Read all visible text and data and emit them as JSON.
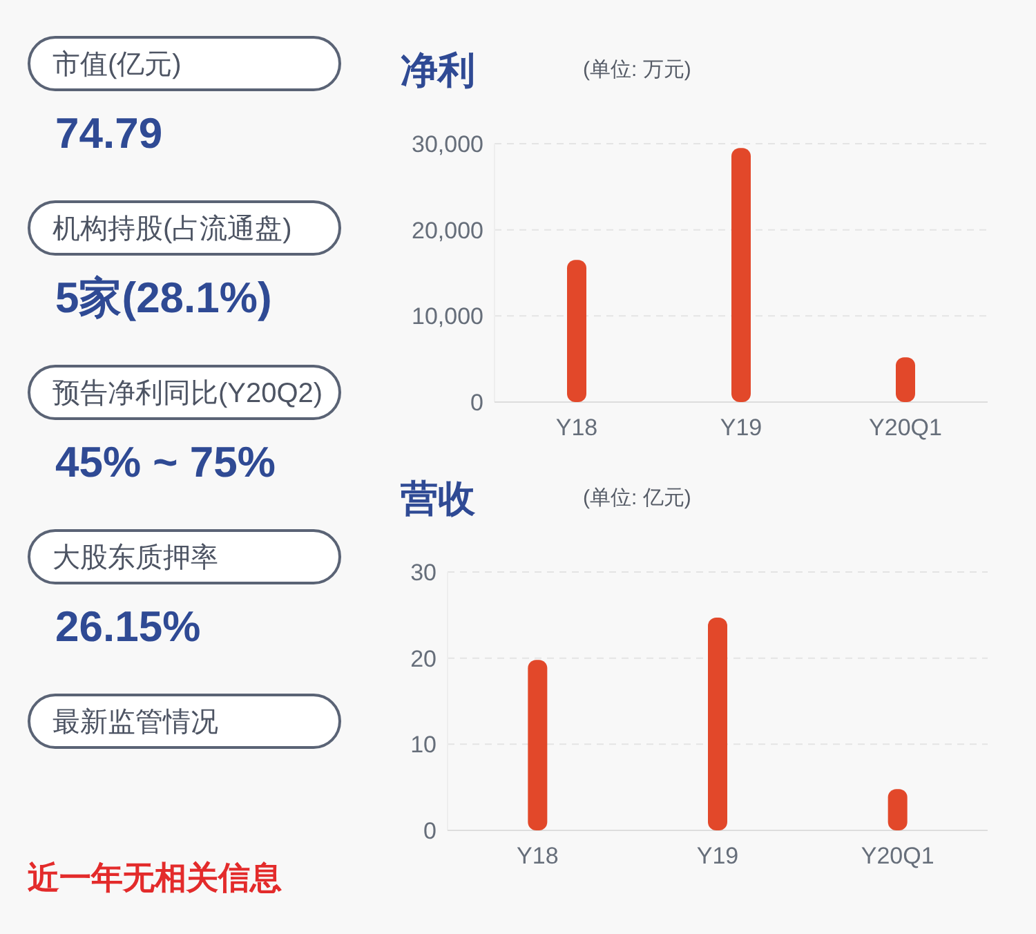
{
  "chart_data": [
    {
      "type": "other",
      "annotations": [
        "市值(亿元)",
        "74.79",
        "机构持股(占流通盘)",
        "5家(28.1%)",
        "预告净利同比(Y20Q2)",
        "45% ~ 75%",
        "大股东质押率",
        "26.15%",
        "最新监管情况",
        "近一年无相关信息"
      ]
    },
    {
      "type": "bar",
      "title": "净利",
      "subtitle": "(单位: 万元)",
      "categories": [
        "Y18",
        "Y19",
        "Y20Q1"
      ],
      "values": [
        16500,
        29500,
        5200
      ],
      "color": "#e2482a",
      "ylim": [
        0,
        30000
      ],
      "yticks": [
        {
          "value": 0,
          "label": "0"
        },
        {
          "value": 10000,
          "label": "10,000"
        },
        {
          "value": 20000,
          "label": "20,000"
        },
        {
          "value": 30000,
          "label": "30,000"
        }
      ],
      "grid": "y"
    },
    {
      "type": "bar",
      "title": "营收",
      "subtitle": "(单位: 亿元)",
      "categories": [
        "Y18",
        "Y19",
        "Y20Q1"
      ],
      "values": [
        19.8,
        24.7,
        4.8
      ],
      "color": "#e2482a",
      "ylim": [
        0,
        30
      ],
      "yticks": [
        0,
        10,
        20,
        30
      ],
      "grid": "y"
    }
  ]
}
